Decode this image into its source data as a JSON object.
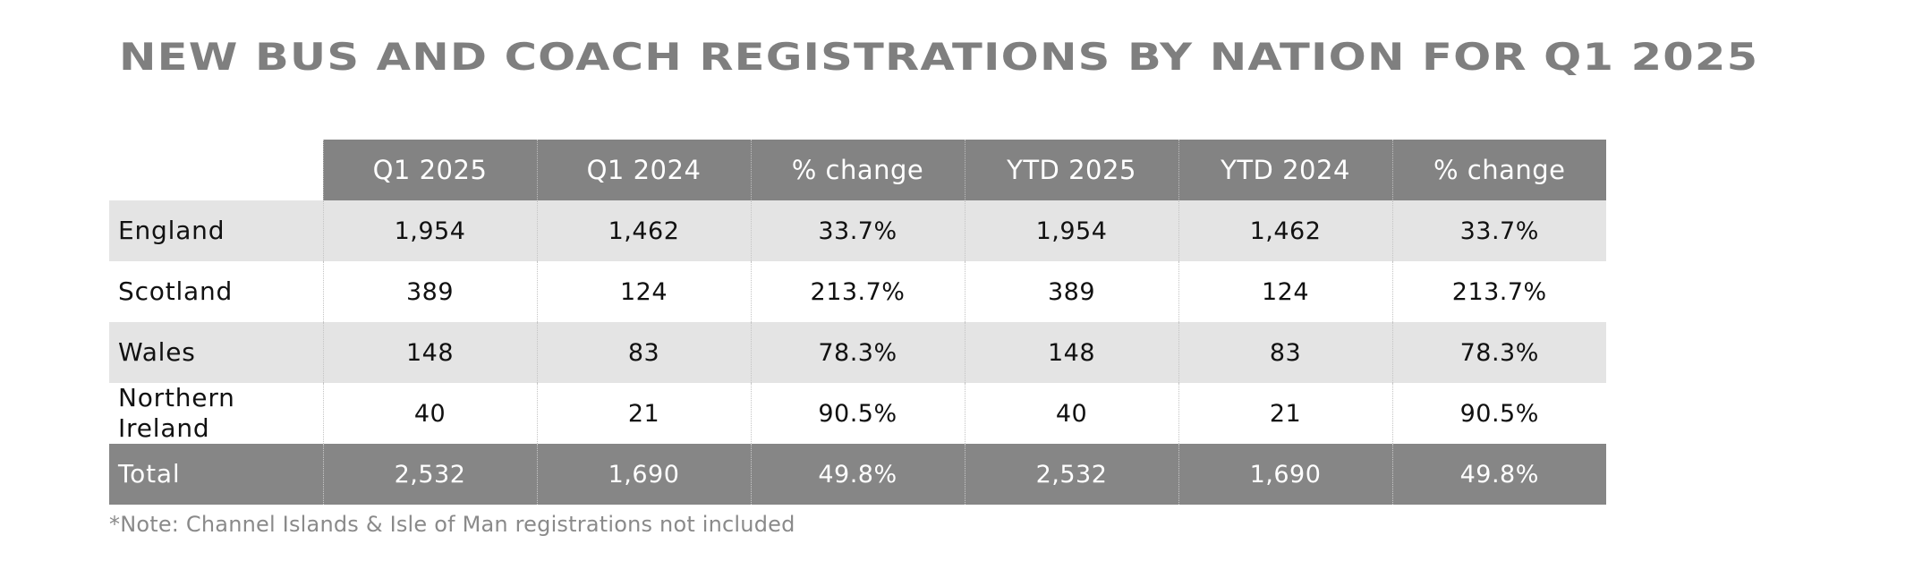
{
  "chart_data": {
    "type": "table",
    "title": "NEW BUS AND COACH REGISTRATIONS BY NATION FOR Q1 2025",
    "columns": [
      "Q1 2025",
      "Q1 2024",
      "% change",
      "YTD 2025",
      "YTD 2024",
      "% change"
    ],
    "rows": [
      {
        "label": "England",
        "values": [
          "1,954",
          "1,462",
          "33.7%",
          "1,954",
          "1,462",
          "33.7%"
        ]
      },
      {
        "label": "Scotland",
        "values": [
          "389",
          "124",
          "213.7%",
          "389",
          "124",
          "213.7%"
        ]
      },
      {
        "label": "Wales",
        "values": [
          "148",
          "83",
          "78.3%",
          "148",
          "83",
          "78.3%"
        ]
      },
      {
        "label": "Northern Ireland",
        "values": [
          "40",
          "21",
          "90.5%",
          "40",
          "21",
          "90.5%"
        ]
      }
    ],
    "total": {
      "label": "Total",
      "values": [
        "2,532",
        "1,690",
        "49.8%",
        "2,532",
        "1,690",
        "49.8%"
      ]
    },
    "note": "*Note: Channel Islands & Isle of Man registrations not included"
  },
  "colors": {
    "header_bg": "#838383",
    "total_bg": "#868686",
    "shaded_row": "#e4e4e4",
    "title": "#7f7f7f",
    "note": "#8a8a8a"
  }
}
